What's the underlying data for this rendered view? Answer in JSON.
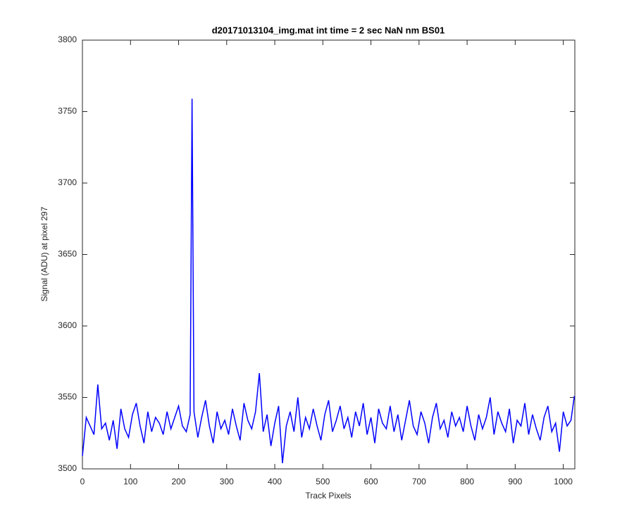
{
  "chart_data": {
    "type": "line",
    "title": "d20171013104_img.mat int time = 2 sec  NaN nm BS01",
    "xlabel": "Track Pixels",
    "ylabel": "Signal (ADU) at pixel 297",
    "xlim": [
      0,
      1024
    ],
    "ylim": [
      3500,
      3800
    ],
    "xticks": [
      0,
      100,
      200,
      300,
      400,
      500,
      600,
      700,
      800,
      900,
      1000
    ],
    "yticks": [
      3500,
      3550,
      3600,
      3650,
      3700,
      3750,
      3800
    ],
    "grid": false,
    "series": [
      {
        "color": "#0000ff",
        "x": [
          0,
          8,
          16,
          24,
          32,
          40,
          48,
          56,
          64,
          72,
          80,
          88,
          96,
          104,
          112,
          120,
          128,
          136,
          144,
          152,
          160,
          168,
          176,
          184,
          192,
          200,
          208,
          216,
          224,
          228,
          232,
          240,
          248,
          256,
          264,
          272,
          280,
          288,
          296,
          304,
          312,
          320,
          328,
          336,
          344,
          352,
          360,
          368,
          376,
          384,
          392,
          400,
          408,
          416,
          424,
          432,
          440,
          448,
          456,
          464,
          472,
          480,
          488,
          496,
          504,
          512,
          520,
          528,
          536,
          544,
          552,
          560,
          568,
          576,
          584,
          592,
          600,
          608,
          616,
          624,
          632,
          640,
          648,
          656,
          664,
          672,
          680,
          688,
          696,
          704,
          712,
          720,
          728,
          736,
          744,
          752,
          760,
          768,
          776,
          784,
          792,
          800,
          808,
          816,
          824,
          832,
          840,
          848,
          856,
          864,
          872,
          880,
          888,
          896,
          904,
          912,
          920,
          928,
          936,
          944,
          952,
          960,
          968,
          976,
          984,
          992,
          1000,
          1008,
          1016,
          1023
        ],
        "values": [
          3509,
          3536,
          3530,
          3524,
          3559,
          3528,
          3532,
          3520,
          3534,
          3514,
          3542,
          3528,
          3522,
          3538,
          3546,
          3530,
          3518,
          3540,
          3526,
          3536,
          3532,
          3524,
          3540,
          3528,
          3536,
          3544,
          3530,
          3526,
          3538,
          3759,
          3540,
          3522,
          3536,
          3548,
          3530,
          3518,
          3540,
          3528,
          3534,
          3524,
          3542,
          3530,
          3520,
          3546,
          3534,
          3528,
          3540,
          3567,
          3526,
          3538,
          3516,
          3532,
          3544,
          3504,
          3530,
          3540,
          3526,
          3550,
          3522,
          3536,
          3528,
          3542,
          3530,
          3520,
          3538,
          3548,
          3526,
          3534,
          3544,
          3528,
          3536,
          3522,
          3540,
          3530,
          3546,
          3524,
          3536,
          3518,
          3542,
          3532,
          3528,
          3544,
          3526,
          3538,
          3520,
          3534,
          3548,
          3530,
          3524,
          3540,
          3532,
          3518,
          3536,
          3546,
          3528,
          3534,
          3522,
          3540,
          3530,
          3536,
          3526,
          3544,
          3530,
          3520,
          3538,
          3528,
          3536,
          3550,
          3524,
          3540,
          3532,
          3526,
          3542,
          3518,
          3534,
          3530,
          3546,
          3524,
          3538,
          3528,
          3520,
          3536,
          3544,
          3526,
          3532,
          3512,
          3540,
          3530,
          3534,
          3551
        ]
      }
    ]
  }
}
